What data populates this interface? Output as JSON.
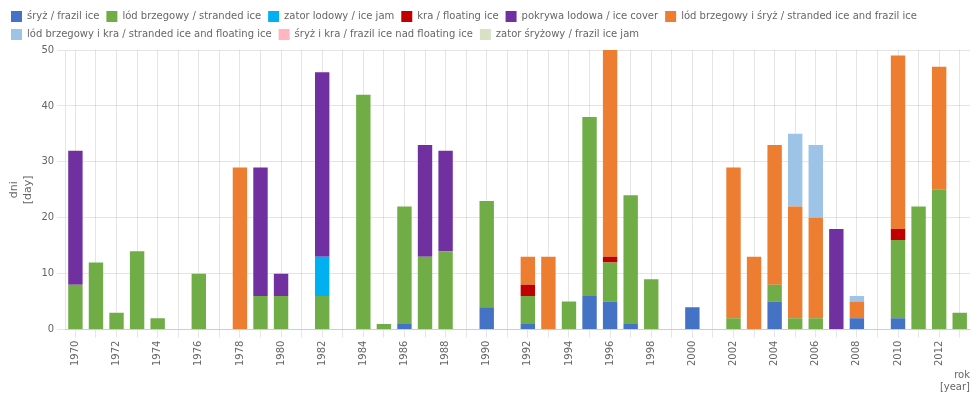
{
  "chart_data": {
    "type": "bar",
    "stacked": true,
    "xlabel": "rok\n[year]",
    "ylabel": "dni\n[day]",
    "categories": [
      "1970",
      null,
      "1972",
      null,
      "1974",
      null,
      "1976",
      null,
      "1978",
      null,
      "1980",
      null,
      "1982",
      null,
      "1984",
      null,
      "1986",
      null,
      "1988",
      null,
      "1990",
      null,
      "1992",
      null,
      "1994",
      null,
      "1996",
      null,
      "1998",
      null,
      "2000",
      null,
      "2002",
      null,
      "2004",
      null,
      "2006",
      null,
      "2008",
      null,
      "2010",
      null,
      "2012",
      null
    ],
    "series": [
      {
        "name": "śryż / frazil ice",
        "color": "#4472C4",
        "values": [
          0,
          0,
          0,
          0,
          0,
          0,
          0,
          0,
          0,
          0,
          0,
          0,
          0,
          0,
          0,
          0,
          1,
          0,
          0,
          0,
          4,
          0,
          1,
          0,
          0,
          6,
          5,
          1,
          0,
          0,
          4,
          0,
          0,
          0,
          5,
          0,
          0,
          0,
          2,
          0,
          2,
          0,
          0,
          0
        ]
      },
      {
        "name": "lód brzegowy / stranded ice",
        "color": "#70AD47",
        "values": [
          8,
          12,
          3,
          14,
          2,
          0,
          10,
          0,
          0,
          6,
          6,
          0,
          6,
          0,
          42,
          1,
          21,
          13,
          14,
          0,
          19,
          0,
          5,
          0,
          5,
          32,
          7,
          23,
          9,
          0,
          0,
          0,
          2,
          0,
          3,
          2,
          2,
          0,
          0,
          0,
          14,
          22,
          25,
          3
        ]
      },
      {
        "name": "zator lodowy / ice jam",
        "color": "#00B0F0",
        "values": [
          0,
          0,
          0,
          0,
          0,
          0,
          0,
          0,
          0,
          0,
          0,
          0,
          7,
          0,
          0,
          0,
          0,
          0,
          0,
          0,
          0,
          0,
          0,
          0,
          0,
          0,
          0,
          0,
          0,
          0,
          0,
          0,
          0,
          0,
          0,
          0,
          0,
          0,
          0,
          0,
          0,
          0,
          0,
          0
        ]
      },
      {
        "name": "kra / floating ice",
        "color": "#C00000",
        "values": [
          0,
          0,
          0,
          0,
          0,
          0,
          0,
          0,
          0,
          0,
          0,
          0,
          0,
          0,
          0,
          0,
          0,
          0,
          0,
          0,
          0,
          0,
          2,
          0,
          0,
          0,
          1,
          0,
          0,
          0,
          0,
          0,
          0,
          0,
          0,
          0,
          0,
          0,
          0,
          0,
          2,
          0,
          0,
          0
        ]
      },
      {
        "name": "pokrywa lodowa / ice cover",
        "color": "#7030A0",
        "values": [
          24,
          0,
          0,
          0,
          0,
          0,
          0,
          0,
          0,
          23,
          4,
          0,
          33,
          0,
          0,
          0,
          0,
          20,
          18,
          0,
          0,
          0,
          0,
          0,
          0,
          0,
          0,
          0,
          0,
          0,
          0,
          0,
          0,
          0,
          0,
          0,
          0,
          18,
          0,
          0,
          0,
          0,
          0,
          0
        ]
      },
      {
        "name": "lód brzegowy i śryż / stranded ice and frazil ice",
        "color": "#ED7D31",
        "values": [
          0,
          0,
          0,
          0,
          0,
          0,
          0,
          0,
          29,
          0,
          0,
          0,
          0,
          0,
          0,
          0,
          0,
          0,
          0,
          0,
          0,
          0,
          5,
          13,
          0,
          0,
          37,
          0,
          0,
          0,
          0,
          0,
          27,
          13,
          25,
          20,
          18,
          0,
          3,
          0,
          31,
          0,
          22,
          0
        ]
      },
      {
        "name": "lód brzegowy i kra / stranded ice and floating ice",
        "color": "#9DC3E6",
        "values": [
          0,
          0,
          0,
          0,
          0,
          0,
          0,
          0,
          0,
          0,
          0,
          0,
          0,
          0,
          0,
          0,
          0,
          0,
          0,
          0,
          0,
          0,
          0,
          0,
          0,
          0,
          0,
          0,
          0,
          0,
          0,
          0,
          0,
          0,
          0,
          13,
          13,
          0,
          1,
          0,
          0,
          0,
          0,
          0
        ]
      },
      {
        "name": "śryż i kra / frazil ice nad floating ice",
        "color": "#FFB6C1",
        "values": [
          0,
          0,
          0,
          0,
          0,
          0,
          0,
          0,
          0,
          0,
          0,
          0,
          0,
          0,
          0,
          0,
          0,
          0,
          0,
          0,
          0,
          0,
          0,
          0,
          0,
          0,
          0,
          0,
          0,
          0,
          0,
          0,
          0,
          0,
          0,
          0,
          0,
          0,
          0,
          0,
          0,
          0,
          0,
          0
        ]
      },
      {
        "name": "zator śryżowy / frazil ice jam",
        "color": "#D9E1C4",
        "values": [
          0,
          0,
          0,
          0,
          0,
          0,
          0,
          0,
          0,
          0,
          0,
          0,
          0,
          0,
          0,
          0,
          0,
          0,
          0,
          0,
          0,
          0,
          0,
          0,
          0,
          0,
          0,
          0,
          0,
          0,
          0,
          0,
          0,
          0,
          0,
          0,
          0,
          0,
          0,
          0,
          0,
          0,
          0,
          0
        ]
      }
    ],
    "ylim": [
      0,
      50
    ],
    "yticks": [
      0,
      10,
      20,
      30,
      40,
      50
    ],
    "grid": true,
    "legend": "top left"
  }
}
